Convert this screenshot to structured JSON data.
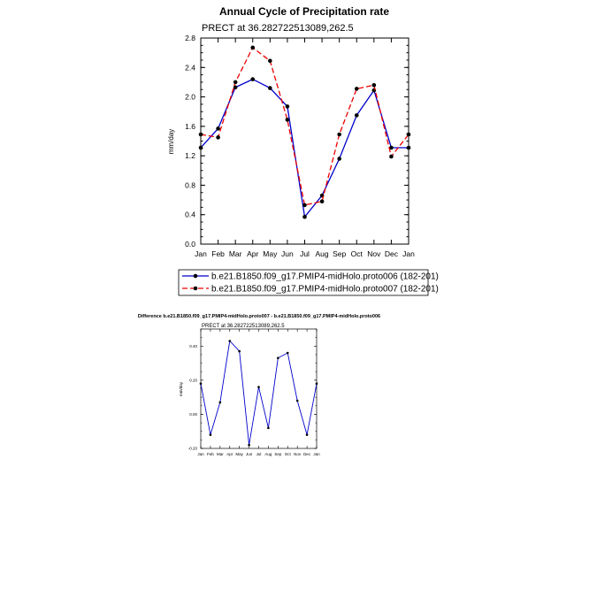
{
  "chart_data": [
    {
      "type": "line",
      "title": "Annual Cycle of Precipitation rate",
      "subtitle": "PRECT at 36.282722513089,262.5",
      "ylabel": "mm/day",
      "categories": [
        "Jan",
        "Feb",
        "Mar",
        "Apr",
        "May",
        "Jun",
        "Jul",
        "Aug",
        "Sep",
        "Oct",
        "Nov",
        "Dec",
        "Jan"
      ],
      "yticks": [
        "0.0",
        "0.4",
        "0.8",
        "1.2",
        "1.6",
        "2.0",
        "2.4",
        "2.8"
      ],
      "ylim": [
        0,
        2.8
      ],
      "legend_position": "bottom",
      "series": [
        {
          "name": "b.e21.B1850.f09_g17.PMIP4-midHolo.proto006 (182-201)",
          "color": "#0000cc",
          "style": "solid",
          "values": [
            1.31,
            1.57,
            2.13,
            2.24,
            2.12,
            1.87,
            0.37,
            0.66,
            1.16,
            1.75,
            2.09,
            1.31,
            1.31
          ]
        },
        {
          "name": "b.e21.B1850.f09_g17.PMIP4-midHolo.proto007 (182-201)",
          "color": "#ee0000",
          "style": "dashed",
          "values": [
            1.49,
            1.45,
            2.2,
            2.67,
            2.49,
            1.69,
            0.53,
            0.58,
            1.49,
            2.11,
            2.16,
            1.19,
            1.49
          ]
        }
      ]
    },
    {
      "type": "line",
      "title": "Difference b.e21.B1850.f09_g17.PMIP4-midHolo.proto007 - b.e21.B1850.f09_g17.PMIP4-midHolo.proto006",
      "subtitle": "PRECT at 36.282722513089,262.5",
      "ylabel": "mm/day",
      "categories": [
        "Jan",
        "Feb",
        "Mar",
        "Apr",
        "May",
        "Jun",
        "Jul",
        "Aug",
        "Sep",
        "Oct",
        "Nov",
        "Dec",
        "Jan"
      ],
      "yticks": [
        "-0.20",
        "0.00",
        "0.20",
        "0.40"
      ],
      "ylim": [
        -0.2,
        0.5
      ],
      "series": [
        {
          "color": "#0000cc",
          "style": "solid",
          "values": [
            0.18,
            -0.12,
            0.07,
            0.43,
            0.37,
            -0.18,
            0.16,
            -0.08,
            0.33,
            0.36,
            0.08,
            -0.12,
            0.18
          ]
        }
      ]
    }
  ]
}
